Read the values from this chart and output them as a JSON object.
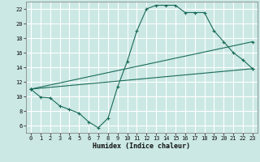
{
  "xlabel": "Humidex (Indice chaleur)",
  "ylabel": "",
  "background_color": "#cbe8e4",
  "grid_color": "#ffffff",
  "line_color": "#1a6b5a",
  "xlim": [
    -0.5,
    23.5
  ],
  "ylim": [
    5.0,
    23.0
  ],
  "xticks": [
    0,
    1,
    2,
    3,
    4,
    5,
    6,
    7,
    8,
    9,
    10,
    11,
    12,
    13,
    14,
    15,
    16,
    17,
    18,
    19,
    20,
    21,
    22,
    23
  ],
  "yticks": [
    6,
    8,
    10,
    12,
    14,
    16,
    18,
    20,
    22
  ],
  "line1_x": [
    0,
    1,
    2,
    3,
    4,
    5,
    6,
    7,
    8,
    9,
    10,
    11,
    12,
    13,
    14,
    15,
    16,
    17,
    18,
    19,
    20,
    21,
    22,
    23
  ],
  "line1_y": [
    11.0,
    9.9,
    9.8,
    8.7,
    8.2,
    7.7,
    6.5,
    5.7,
    7.0,
    11.3,
    14.8,
    19.0,
    22.0,
    22.5,
    22.5,
    22.5,
    21.5,
    21.5,
    21.5,
    19.0,
    17.5,
    16.0,
    15.0,
    13.8
  ],
  "line2_x": [
    0,
    23
  ],
  "line2_y": [
    11.0,
    13.8
  ],
  "line3_x": [
    0,
    23
  ],
  "line3_y": [
    11.0,
    17.5
  ]
}
